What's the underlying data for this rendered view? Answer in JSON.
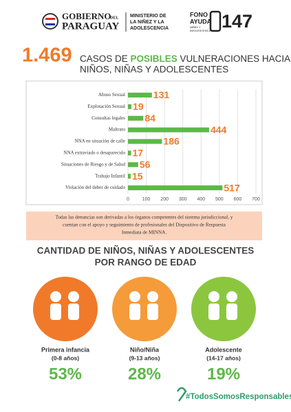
{
  "header": {
    "gov": [
      "GOBIERNO",
      "DEL",
      "PARAGUAY"
    ],
    "ministry": [
      "MINISTERIO DE",
      "LA NIÑEZ Y LA",
      "ADOLESCENCIA"
    ],
    "fono": [
      "FONO",
      "AYUDA",
      "NIÑEZ Y",
      "ADOLESCENCIA"
    ],
    "number": "147"
  },
  "headline": {
    "total": "1.469",
    "line1a": "CASOS DE ",
    "line1b": "POSIBLES",
    "line1c": " VULNERACIONES HACIA",
    "line2": "NIÑOS, NIÑAS Y ADOLESCENTES"
  },
  "chart_data": {
    "type": "hbar",
    "categories": [
      "Abuso Sexual",
      "Explotación Sexual",
      "Consultas legales",
      "Maltrato",
      "NNA en situación de calle",
      "NNA extraviado o desaparecido",
      "Situaciones de Riesgo y de Salud",
      "Trabajo Infantil",
      "Violación del deber de cuidado"
    ],
    "values": [
      131,
      19,
      84,
      444,
      186,
      17,
      56,
      15,
      517
    ],
    "color": "#5cb848",
    "label_color": "#f07a2a",
    "xlim": [
      0,
      700
    ],
    "xticks": [
      0,
      100,
      200,
      300,
      400,
      500,
      600,
      700
    ],
    "grid": true
  },
  "note": [
    "Todas las denuncias son derivadas a los órganos competentes del sistema jurisdiccional, y",
    "cuentan con el apoyo y seguimiento de profesionales del Dispositivo de Respuesta",
    "Inmediata de MINNA."
  ],
  "age_title": [
    "CANTIDAD DE NIÑOS, NIÑAS Y ADOLESCENTES",
    "POR RANGO DE EDAD"
  ],
  "age_groups": [
    {
      "name": "Primera infancia",
      "range": "(0-8 años)",
      "percent": "53%",
      "color": "#f07a2a"
    },
    {
      "name": "Niño/Niña",
      "range": "(9-13 años)",
      "percent": "28%",
      "color": "#f59b3a"
    },
    {
      "name": "Adolescente",
      "range": "(14-17 años)",
      "percent": "19%",
      "color": "#8cc63f"
    }
  ],
  "hashtag": "#TodosSomosResponsables"
}
